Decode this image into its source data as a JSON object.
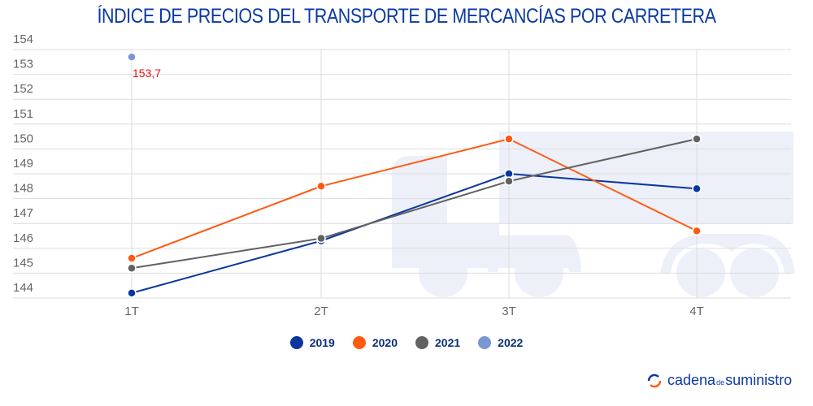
{
  "chart_data": {
    "type": "line",
    "title": "ÍNDICE DE PRECIOS DEL TRANSPORTE DE MERCANCÍAS POR CARRETERA",
    "categories": [
      "1T",
      "2T",
      "3T",
      "4T"
    ],
    "ylim": [
      144,
      154
    ],
    "yticks": [
      "144",
      "145",
      "146",
      "147",
      "148",
      "149",
      "150",
      "151",
      "152",
      "153",
      "154"
    ],
    "grid": true,
    "legend_position": "bottom",
    "series": [
      {
        "name": "2019",
        "color": "#0a36a0",
        "values": [
          144.2,
          146.3,
          149.0,
          148.4
        ]
      },
      {
        "name": "2020",
        "color": "#ff5a12",
        "values": [
          145.6,
          148.5,
          150.4,
          146.7
        ]
      },
      {
        "name": "2021",
        "color": "#616161",
        "values": [
          145.2,
          146.4,
          148.7,
          150.4
        ]
      },
      {
        "name": "2022",
        "color": "#7b97d1",
        "values": [
          153.7,
          null,
          null,
          null
        ]
      }
    ],
    "annotations": [
      {
        "text": "153,7",
        "series": "2022",
        "category": "1T",
        "color": "#e8120c"
      }
    ]
  },
  "brand": {
    "part1": "cadena",
    "part2": "de",
    "part3": "suministro"
  }
}
